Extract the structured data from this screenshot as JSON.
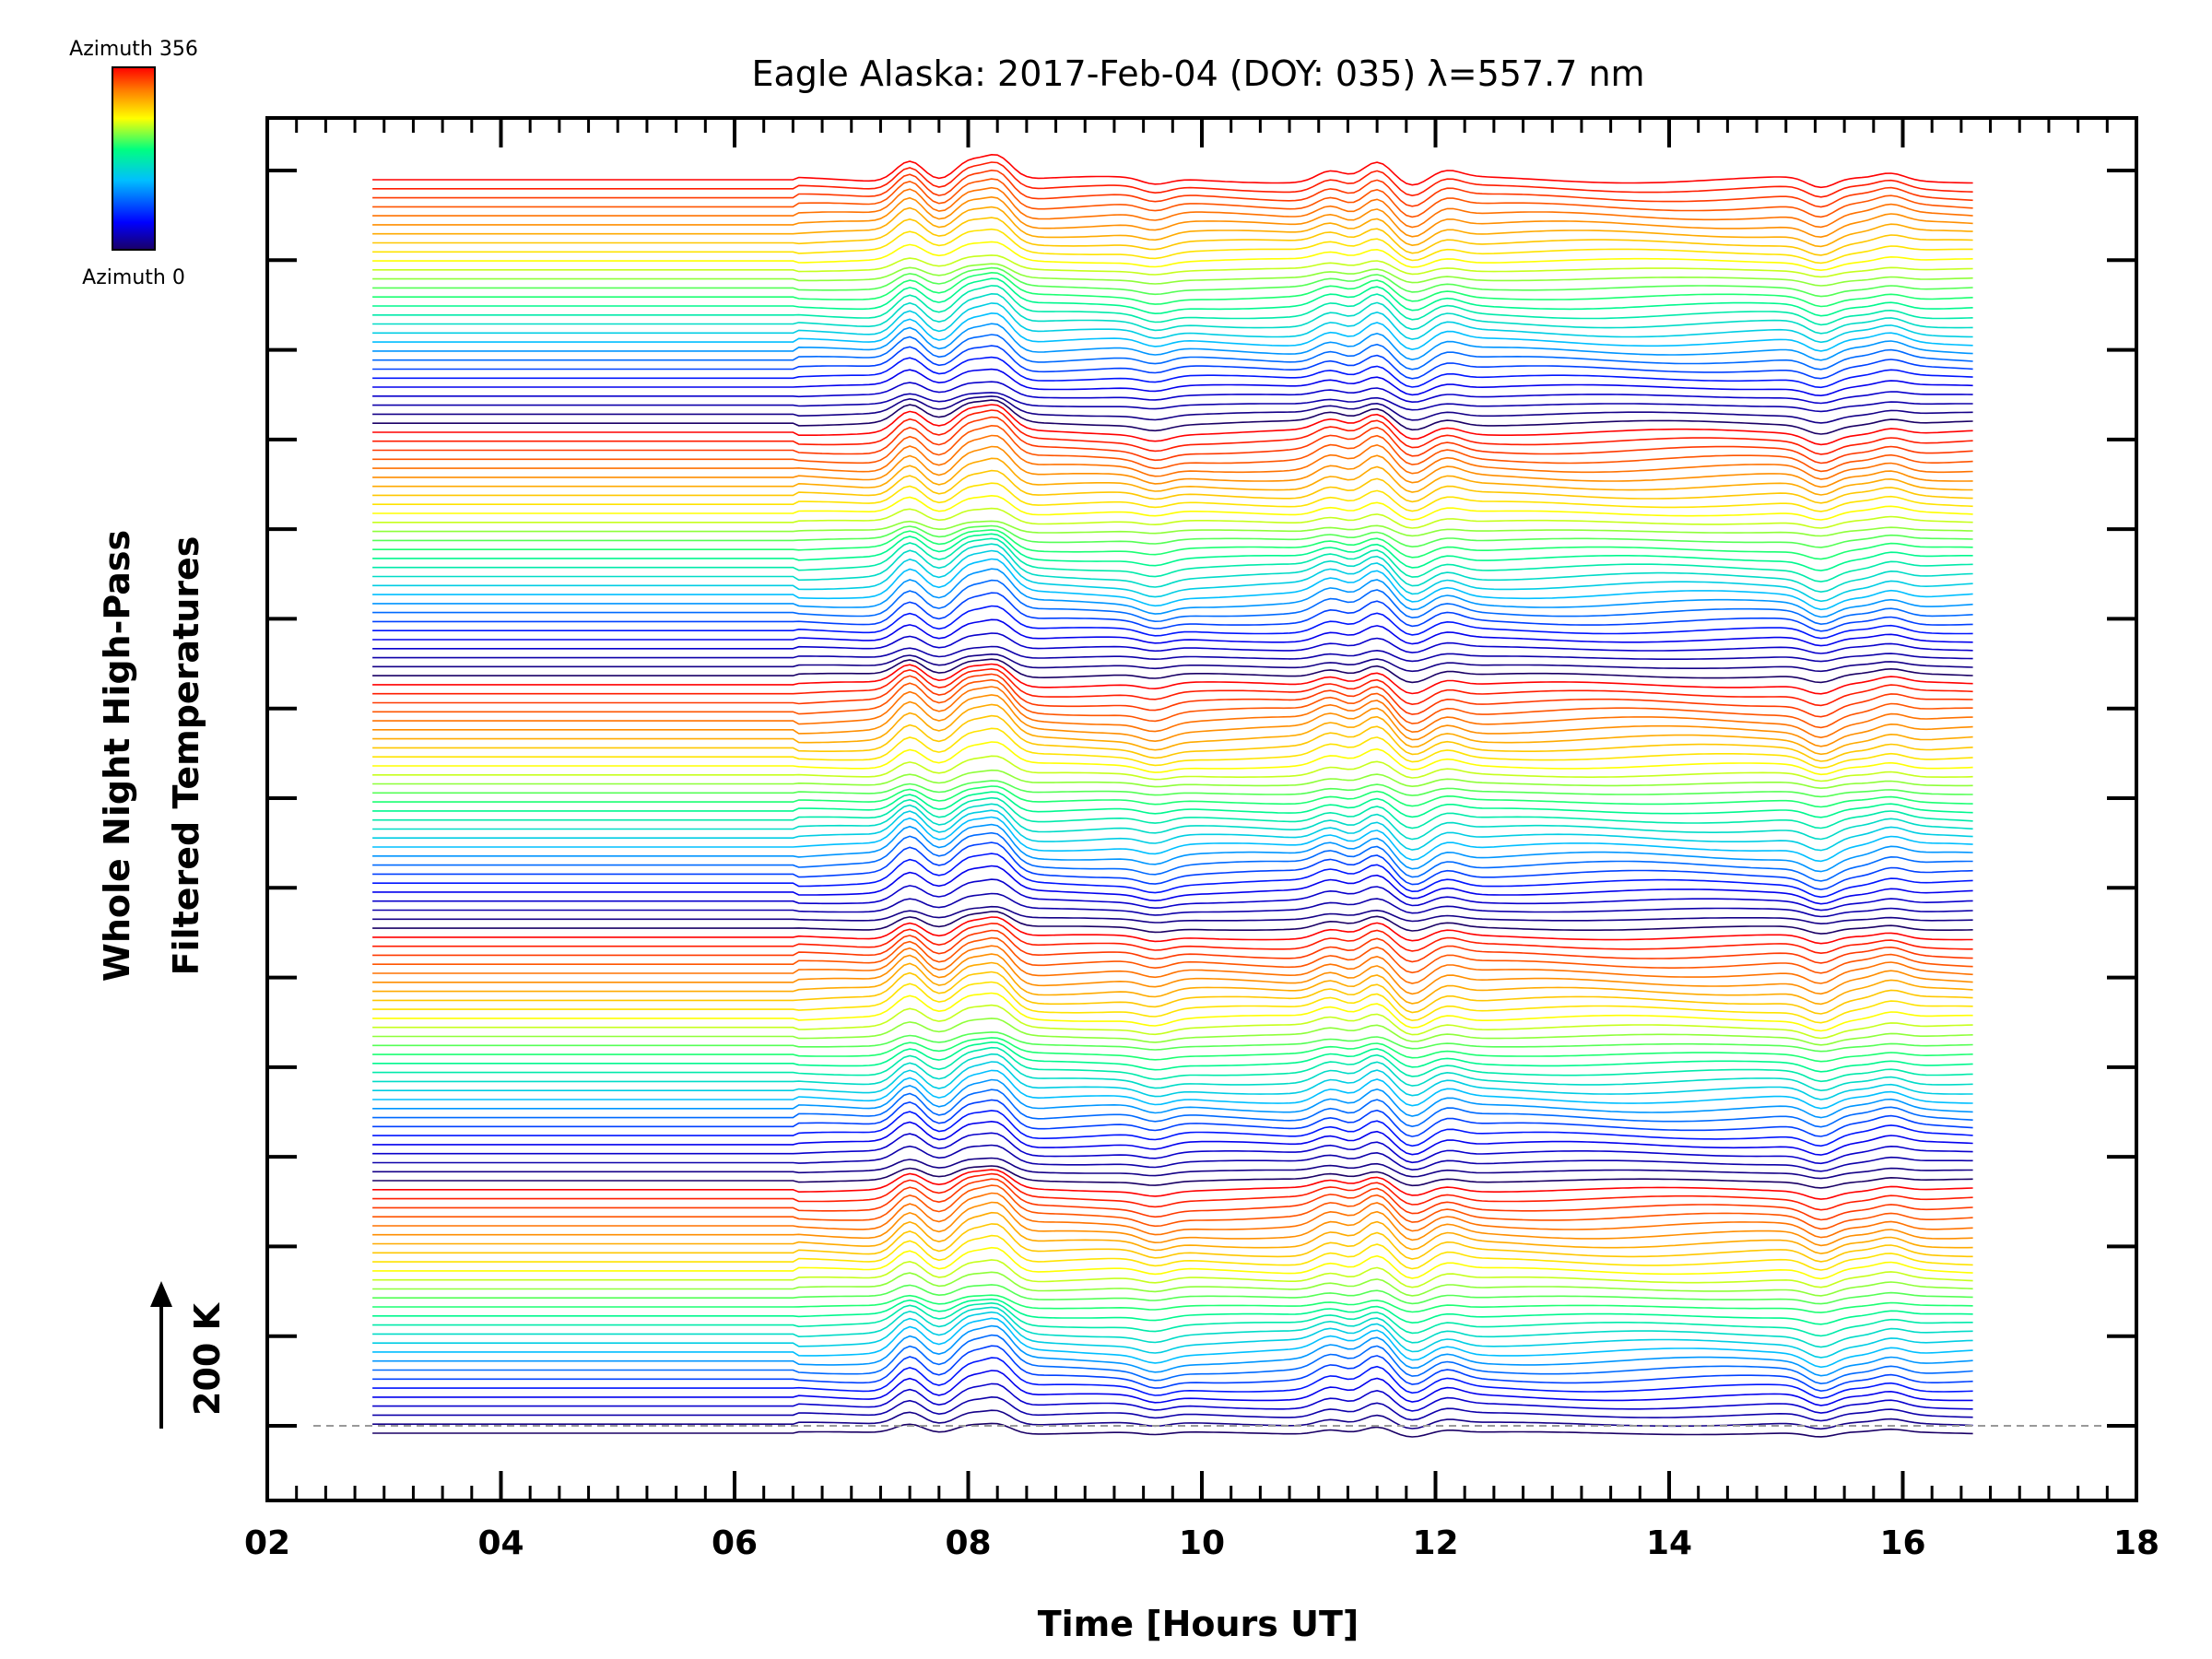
{
  "chart_data": {
    "type": "line",
    "title": "Eagle Alaska: 2017-Feb-04 (DOY: 035) λ=557.7 nm",
    "xlabel": "Time [Hours UT]",
    "ylabel_line1": "Whole Night High-Pass",
    "ylabel_line2": "Filtered Temperatures",
    "scale_label": "200 K",
    "xlim": [
      2,
      18
    ],
    "x_ticks": [
      "02",
      "04",
      "06",
      "08",
      "10",
      "12",
      "14",
      "16",
      "18"
    ],
    "x_tick_values": [
      2,
      4,
      6,
      8,
      10,
      12,
      14,
      16,
      18
    ],
    "y_tick_count": 15,
    "colorbar": {
      "top_label": "Azimuth 356",
      "bottom_label": "Azimuth 0",
      "min": 0,
      "max": 356,
      "colors": [
        "#1a0066",
        "#0000ff",
        "#00bfff",
        "#00ff80",
        "#ffff00",
        "#ff8000",
        "#ff0000"
      ]
    },
    "series_structure": {
      "n_series": 140,
      "x_start_hours": 2.9,
      "x_end_hours": 16.6,
      "baseline_dashed": true
    },
    "features": [
      {
        "t": 7.5,
        "amp": 1.0
      },
      {
        "t": 8.0,
        "amp": 0.9
      },
      {
        "t": 8.25,
        "amp": 1.1
      },
      {
        "t": 9.6,
        "amp": -0.3
      },
      {
        "t": 11.1,
        "amp": 0.5
      },
      {
        "t": 11.5,
        "amp": 0.8
      },
      {
        "t": 11.8,
        "amp": -0.4
      },
      {
        "t": 12.1,
        "amp": 0.3
      },
      {
        "t": 15.3,
        "amp": -0.5
      },
      {
        "t": 15.9,
        "amp": 0.3
      }
    ]
  }
}
